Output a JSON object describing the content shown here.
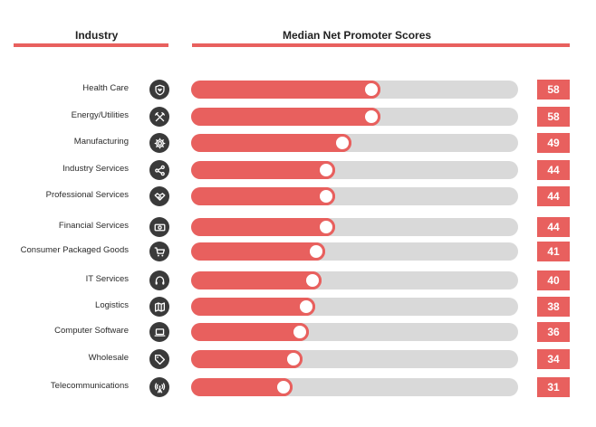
{
  "headers": {
    "industry": "Industry",
    "nps": "Median Net Promoter Scores"
  },
  "colors": {
    "accent": "#e8605e",
    "track": "#d9d9d9",
    "icon_bg": "#3a3a3a"
  },
  "chart_data": {
    "type": "bar",
    "orientation": "horizontal",
    "title": "Median Net Promoter Scores",
    "xlabel": "",
    "ylabel": "Industry",
    "xlim": [
      0,
      100
    ],
    "categories": [
      "Health Care",
      "Energy/Utilities",
      "Manufacturing",
      "Industry Services",
      "Professional Services",
      "Financial Services",
      "Consumer Packaged Goods",
      "IT Services",
      "Logistics",
      "Computer Software",
      "Wholesale",
      "Telecommunications"
    ],
    "values": [
      58,
      58,
      49,
      44,
      44,
      44,
      41,
      40,
      38,
      36,
      34,
      31
    ],
    "icons": [
      "heart-shield-icon",
      "tools-icon",
      "gear-icon",
      "share-icon",
      "handshake-icon",
      "money-icon",
      "shopping-cart-icon",
      "headset-icon",
      "map-icon",
      "laptop-icon",
      "tag-icon",
      "antenna-icon"
    ]
  }
}
